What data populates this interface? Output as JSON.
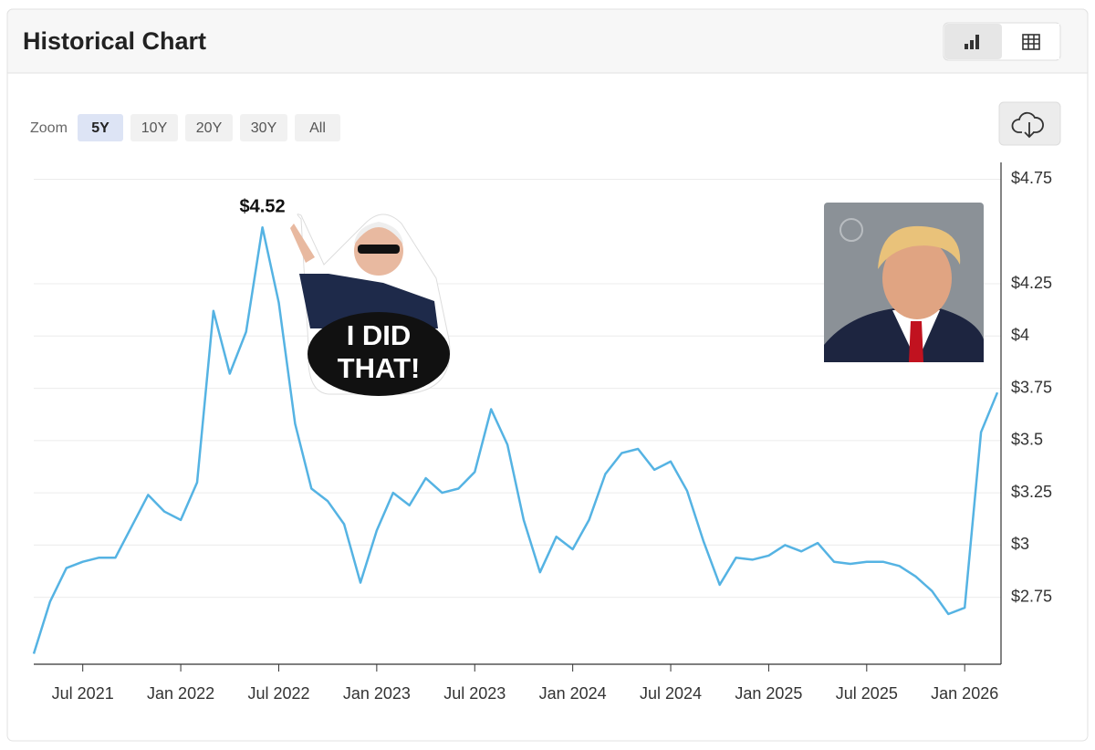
{
  "header": {
    "title": "Historical Chart"
  },
  "zoom": {
    "label": "Zoom",
    "options": [
      "5Y",
      "10Y",
      "20Y",
      "30Y",
      "All"
    ]
  },
  "sticker_text": [
    "I DID",
    "THAT!"
  ],
  "chart_data": {
    "type": "line",
    "x": [
      "2021-04",
      "2021-05",
      "2021-06",
      "2021-07",
      "2021-08",
      "2021-09",
      "2021-10",
      "2021-11",
      "2021-12",
      "2022-01",
      "2022-02",
      "2022-03",
      "2022-04",
      "2022-05",
      "2022-06",
      "2022-07",
      "2022-08",
      "2022-09",
      "2022-10",
      "2022-11",
      "2022-12",
      "2023-01",
      "2023-02",
      "2023-03",
      "2023-04",
      "2023-05",
      "2023-06",
      "2023-07",
      "2023-08",
      "2023-09",
      "2023-10",
      "2023-11",
      "2023-12",
      "2024-01",
      "2024-02",
      "2024-03",
      "2024-04",
      "2024-05",
      "2024-06",
      "2024-07",
      "2024-08",
      "2024-09",
      "2024-10",
      "2024-11",
      "2024-12",
      "2025-01",
      "2025-02",
      "2025-03",
      "2025-04",
      "2025-05",
      "2025-06",
      "2025-07",
      "2025-08",
      "2025-09",
      "2025-10",
      "2025-11",
      "2025-12",
      "2026-01",
      "2026-02",
      "2026-03"
    ],
    "series": [
      {
        "color": "#55b3e3",
        "values": [
          2.48,
          2.73,
          2.89,
          2.92,
          2.94,
          2.94,
          3.09,
          3.24,
          3.16,
          3.12,
          3.3,
          4.12,
          3.82,
          4.02,
          4.52,
          4.16,
          3.58,
          3.27,
          3.21,
          3.1,
          2.82,
          3.07,
          3.25,
          3.19,
          3.32,
          3.25,
          3.27,
          3.35,
          3.65,
          3.48,
          3.12,
          2.87,
          3.04,
          2.98,
          3.12,
          3.34,
          3.44,
          3.46,
          3.36,
          3.4,
          3.26,
          3.02,
          2.81,
          2.94,
          2.93,
          2.95,
          3.0,
          2.97,
          3.01,
          2.92,
          2.91,
          2.92,
          2.92,
          2.9,
          2.85,
          2.78,
          2.67,
          2.7,
          3.54,
          3.73
        ]
      }
    ],
    "annotation": "$4.52",
    "xlim": [
      "2021-04",
      "2026-03"
    ],
    "xticks": [
      {
        "value": "2021-07",
        "label": "Jul 2021"
      },
      {
        "value": "2022-01",
        "label": "Jan 2022"
      },
      {
        "value": "2022-07",
        "label": "Jul 2022"
      },
      {
        "value": "2023-01",
        "label": "Jan 2023"
      },
      {
        "value": "2023-07",
        "label": "Jul 2023"
      },
      {
        "value": "2024-01",
        "label": "Jan 2024"
      },
      {
        "value": "2024-07",
        "label": "Jul 2024"
      },
      {
        "value": "2025-01",
        "label": "Jan 2025"
      },
      {
        "value": "2025-07",
        "label": "Jul 2025"
      },
      {
        "value": "2026-01",
        "label": "Jan 2026"
      }
    ],
    "ylim": [
      2.43,
      4.8
    ],
    "yticks": [
      {
        "value": 4.75,
        "label": "$4.75"
      },
      {
        "value": 4.25,
        "label": "$4.25"
      },
      {
        "value": 4,
        "label": "$4"
      },
      {
        "value": 3.75,
        "label": "$3.75"
      },
      {
        "value": 3.5,
        "label": "$3.5"
      },
      {
        "value": 3.25,
        "label": "$3.25"
      },
      {
        "value": 3,
        "label": "$3"
      },
      {
        "value": 2.75,
        "label": "$2.75"
      }
    ],
    "grid": true
  }
}
